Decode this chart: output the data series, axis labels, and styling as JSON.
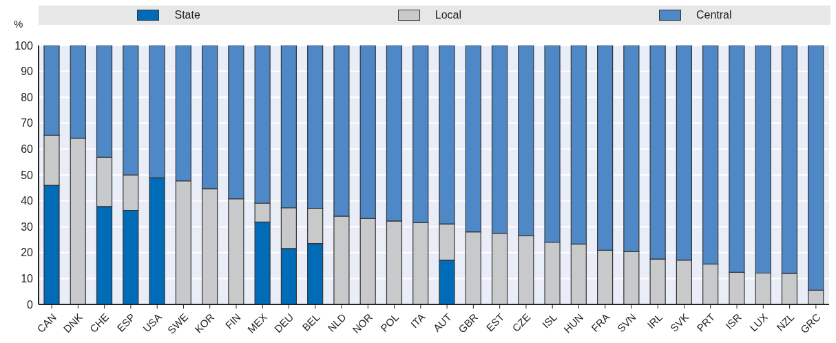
{
  "chart_data": {
    "type": "bar",
    "stacked": true,
    "ylabel": "%",
    "legend": "top",
    "grid": "y",
    "categories": [
      "CAN",
      "DNK",
      "CHE",
      "ESP",
      "USA",
      "SWE",
      "KOR",
      "FIN",
      "MEX",
      "DEU",
      "BEL",
      "NLD",
      "NOR",
      "POL",
      "ITA",
      "AUT",
      "GBR",
      "EST",
      "CZE",
      "ISL",
      "HUN",
      "FRA",
      "SVN",
      "IRL",
      "SVK",
      "PRT",
      "ISR",
      "LUX",
      "NZL",
      "GRC"
    ],
    "series": [
      {
        "name": "State",
        "color": "#006bb6",
        "values": [
          46,
          null,
          37.8,
          36.3,
          48.9,
          null,
          null,
          null,
          31.8,
          21.6,
          23.5,
          null,
          null,
          null,
          null,
          17.1,
          null,
          null,
          null,
          null,
          null,
          null,
          null,
          null,
          null,
          null,
          null,
          null,
          null,
          null
        ]
      },
      {
        "name": "Local",
        "color": "#c8c9cb",
        "values": [
          19.3,
          64.2,
          19,
          13.7,
          null,
          47.7,
          44.7,
          40.8,
          7.3,
          15.7,
          13.6,
          34.1,
          33.2,
          32.2,
          31.6,
          14,
          28,
          27.5,
          26.5,
          24,
          23.3,
          20.9,
          20.4,
          17.5,
          17.1,
          15.6,
          12.4,
          12.1,
          12,
          5.5
        ]
      },
      {
        "name": "Central",
        "color": "#4e88c7",
        "values": [
          34.7,
          35.8,
          43.2,
          50,
          51.1,
          52.3,
          55.3,
          59.2,
          60.9,
          62.7,
          62.9,
          65.9,
          66.8,
          67.8,
          68.4,
          68.9,
          72,
          72.5,
          73.5,
          76,
          76.7,
          79.1,
          79.6,
          82.5,
          82.9,
          84.4,
          87.6,
          87.9,
          88,
          94.5
        ]
      }
    ],
    "ylim": [
      0,
      100
    ],
    "yticks": [
      0,
      10,
      20,
      30,
      40,
      50,
      60,
      70,
      80,
      90,
      100
    ]
  }
}
